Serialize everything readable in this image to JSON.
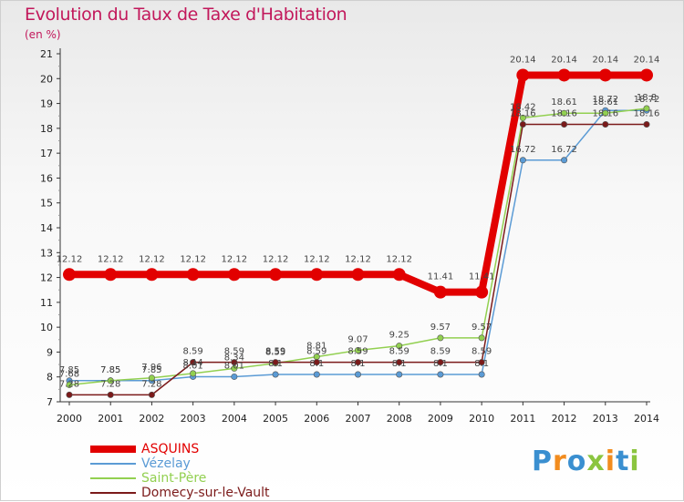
{
  "chart_data": {
    "type": "line",
    "title": "Evolution du Taux de Taxe d'Habitation",
    "subtitle": "(en %)",
    "x": [
      2000,
      2001,
      2002,
      2003,
      2004,
      2005,
      2006,
      2007,
      2008,
      2009,
      2010,
      2011,
      2012,
      2013,
      2014
    ],
    "ylim": [
      7,
      21
    ],
    "yticks": [
      7,
      8,
      9,
      10,
      11,
      12,
      13,
      14,
      15,
      16,
      17,
      18,
      19,
      20,
      21
    ],
    "grid": false,
    "legend_position": "bottom-left",
    "series": [
      {
        "name": "ASQUINS",
        "color": "#e20000",
        "values": [
          12.12,
          12.12,
          12.12,
          12.12,
          12.12,
          12.12,
          12.12,
          12.12,
          12.12,
          11.41,
          11.41,
          20.14,
          20.14,
          20.14,
          20.14
        ],
        "labels": [
          "12.12",
          "12.12",
          "12.12",
          "12.12",
          "12.12",
          "12.12",
          "12.12",
          "12.12",
          "12.12",
          "11.41",
          "11.41",
          "20.14",
          "20.14",
          "20.14",
          "20.14"
        ]
      },
      {
        "name": "Vézelay",
        "color": "#5b9bd5",
        "values": [
          7.85,
          7.85,
          7.85,
          8.01,
          8.01,
          8.1,
          8.1,
          8.1,
          8.1,
          8.1,
          8.1,
          16.72,
          16.72,
          18.72,
          18.72
        ],
        "labels": [
          "7.85",
          "7.85",
          "7.85",
          "8.01",
          "8.01",
          "8.1",
          "8.1",
          "8.1",
          "8.1",
          "8.1",
          "8.1",
          "16.72",
          "16.72",
          "18.72",
          "18.72"
        ]
      },
      {
        "name": "Saint-Père",
        "color": "#92d050",
        "values": [
          7.68,
          7.85,
          7.96,
          8.14,
          8.34,
          8.55,
          8.81,
          9.07,
          9.25,
          9.57,
          9.57,
          18.42,
          18.61,
          18.61,
          18.8
        ],
        "labels": [
          "7.68",
          "7.85",
          "7.96",
          "8.14",
          "8.34",
          "8.55",
          "8.81",
          "9.07",
          "9.25",
          "9.57",
          "9.57",
          "18.42",
          "18.61",
          "18.61",
          "18.8"
        ]
      },
      {
        "name": "Domecy-sur-le-Vault",
        "color": "#7b1a1a",
        "values": [
          7.28,
          7.28,
          7.28,
          8.59,
          8.59,
          8.59,
          8.59,
          8.59,
          8.59,
          8.59,
          8.59,
          18.16,
          18.16,
          18.16,
          18.16
        ],
        "labels": [
          "7.28",
          "7.28",
          "7.28",
          "8.59",
          "8.59",
          "8.59",
          "8.59",
          "8.59",
          "8.59",
          "8.59",
          "8.59",
          "18.16",
          "18.16",
          "18.16",
          "18.16"
        ]
      }
    ]
  },
  "brand": {
    "letters": [
      "P",
      "r",
      "o",
      "x",
      "i",
      "t",
      "i"
    ],
    "colors": [
      "#3a8fd0",
      "#f28c1e",
      "#3a8fd0",
      "#8bc53f",
      "#f28c1e",
      "#3a8fd0",
      "#8bc53f"
    ]
  }
}
